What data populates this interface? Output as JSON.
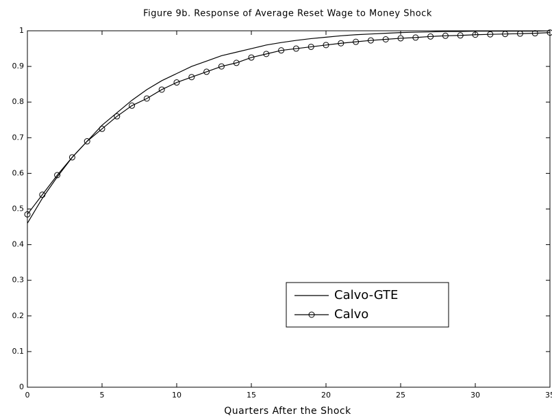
{
  "chart_data": {
    "type": "line",
    "title": "Figure 9b. Response of Average Reset Wage to Money Shock",
    "x_label": "Quarters After the Shock",
    "x": [
      0,
      1,
      2,
      3,
      4,
      5,
      6,
      7,
      8,
      9,
      10,
      11,
      12,
      13,
      14,
      15,
      16,
      17,
      18,
      19,
      20,
      21,
      22,
      23,
      24,
      25,
      26,
      27,
      28,
      29,
      30,
      31,
      32,
      33,
      34,
      35
    ],
    "series": [
      {
        "name": "Calvo-GTE",
        "color": "#000000",
        "marker": false,
        "values": [
          0.46,
          0.53,
          0.59,
          0.645,
          0.69,
          0.735,
          0.77,
          0.805,
          0.835,
          0.86,
          0.88,
          0.9,
          0.915,
          0.93,
          0.94,
          0.95,
          0.96,
          0.967,
          0.973,
          0.978,
          0.982,
          0.986,
          0.989,
          0.991,
          0.993,
          0.995,
          0.996,
          0.997,
          0.998,
          0.998,
          0.999,
          0.999,
          0.999,
          0.999,
          0.999,
          1
        ]
      },
      {
        "name": "Calvo",
        "color": "#000000",
        "marker": true,
        "values": [
          0.485,
          0.54,
          0.595,
          0.645,
          0.69,
          0.725,
          0.76,
          0.79,
          0.81,
          0.835,
          0.855,
          0.87,
          0.885,
          0.9,
          0.91,
          0.925,
          0.935,
          0.945,
          0.95,
          0.955,
          0.96,
          0.965,
          0.969,
          0.973,
          0.976,
          0.979,
          0.981,
          0.984,
          0.986,
          0.987,
          0.989,
          0.99,
          0.991,
          0.992,
          0.993,
          0.995
        ]
      }
    ],
    "xlim": [
      0,
      35
    ],
    "xticks": [
      0,
      5,
      10,
      15,
      20,
      25,
      30,
      35
    ],
    "ylim": [
      0,
      1
    ],
    "yticks": [
      0,
      0.1,
      0.2,
      0.3,
      0.4,
      0.5,
      0.6,
      0.7,
      0.8,
      0.9,
      1
    ],
    "legend": "lower right"
  }
}
